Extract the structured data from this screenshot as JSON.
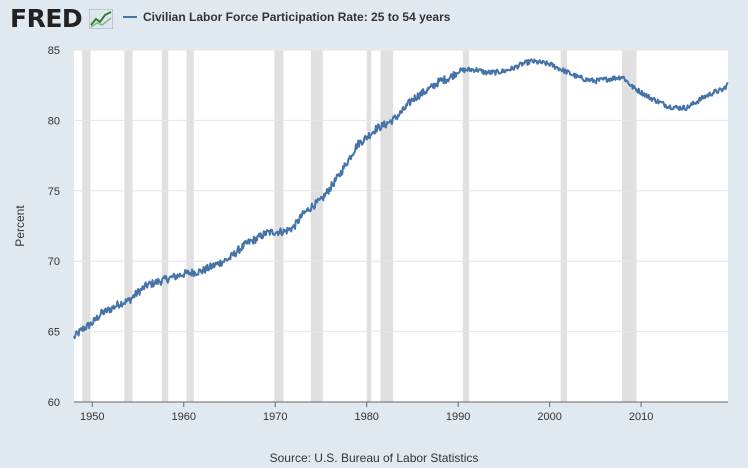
{
  "header": {
    "logo_text": "FRED",
    "logo_icon": "chart-line-icon",
    "legend_label": "Civilian Labor Force Participation Rate: 25 to 54 years",
    "series_color": "#4572a7"
  },
  "source": "Source: U.S. Bureau of Labor Statistics",
  "chart_data": {
    "type": "line",
    "title": "",
    "xlabel": "",
    "ylabel": "Percent",
    "xlim": [
      1948,
      2019.5
    ],
    "ylim": [
      60,
      85
    ],
    "x_ticks": [
      "1950",
      "1960",
      "1970",
      "1980",
      "1990",
      "2000",
      "2010"
    ],
    "y_ticks": [
      "60",
      "65",
      "70",
      "75",
      "80",
      "85"
    ],
    "grid": true,
    "legend": "top-left",
    "recessions": [
      [
        1948.9,
        1949.8
      ],
      [
        1953.5,
        1954.4
      ],
      [
        1957.6,
        1958.3
      ],
      [
        1960.3,
        1961.1
      ],
      [
        1969.9,
        1970.9
      ],
      [
        1973.9,
        1975.2
      ],
      [
        1980.0,
        1980.5
      ],
      [
        1981.5,
        1982.9
      ],
      [
        1990.5,
        1991.2
      ],
      [
        2001.2,
        2001.9
      ],
      [
        2007.9,
        2009.5
      ]
    ],
    "series": [
      {
        "name": "Civilian Labor Force Participation Rate: 25 to 54 years",
        "x": [
          1948.0,
          1949.0,
          1950.0,
          1951.0,
          1952.0,
          1953.0,
          1954.0,
          1955.0,
          1956.0,
          1957.0,
          1958.0,
          1959.0,
          1960.0,
          1961.0,
          1962.0,
          1963.0,
          1964.0,
          1965.0,
          1966.0,
          1967.0,
          1968.0,
          1969.0,
          1970.0,
          1971.0,
          1972.0,
          1973.0,
          1974.0,
          1975.0,
          1976.0,
          1977.0,
          1978.0,
          1979.0,
          1980.0,
          1981.0,
          1982.0,
          1983.0,
          1984.0,
          1985.0,
          1986.0,
          1987.0,
          1988.0,
          1989.0,
          1990.0,
          1991.0,
          1992.0,
          1993.0,
          1994.0,
          1995.0,
          1996.0,
          1997.0,
          1998.0,
          1999.0,
          2000.0,
          2001.0,
          2002.0,
          2003.0,
          2004.0,
          2005.0,
          2006.0,
          2007.0,
          2008.0,
          2009.0,
          2010.0,
          2011.0,
          2012.0,
          2013.0,
          2014.0,
          2015.0,
          2016.0,
          2017.0,
          2018.0,
          2019.0,
          2019.5
        ],
        "values": [
          64.6,
          65.2,
          65.6,
          66.3,
          66.6,
          67.0,
          67.2,
          67.8,
          68.3,
          68.5,
          68.7,
          68.9,
          69.1,
          69.2,
          69.3,
          69.6,
          69.9,
          70.2,
          70.8,
          71.3,
          71.6,
          72.0,
          72.1,
          72.1,
          72.4,
          73.3,
          73.9,
          74.3,
          75.2,
          76.1,
          77.2,
          78.3,
          78.8,
          79.4,
          79.7,
          80.1,
          80.7,
          81.5,
          81.9,
          82.3,
          82.8,
          83.0,
          83.5,
          83.6,
          83.6,
          83.4,
          83.4,
          83.5,
          83.7,
          84.0,
          84.2,
          84.1,
          84.0,
          83.7,
          83.4,
          83.1,
          82.9,
          82.8,
          82.9,
          83.0,
          83.1,
          82.4,
          82.0,
          81.6,
          81.3,
          81.0,
          80.9,
          80.9,
          81.3,
          81.7,
          82.0,
          82.2,
          82.6
        ]
      }
    ]
  }
}
